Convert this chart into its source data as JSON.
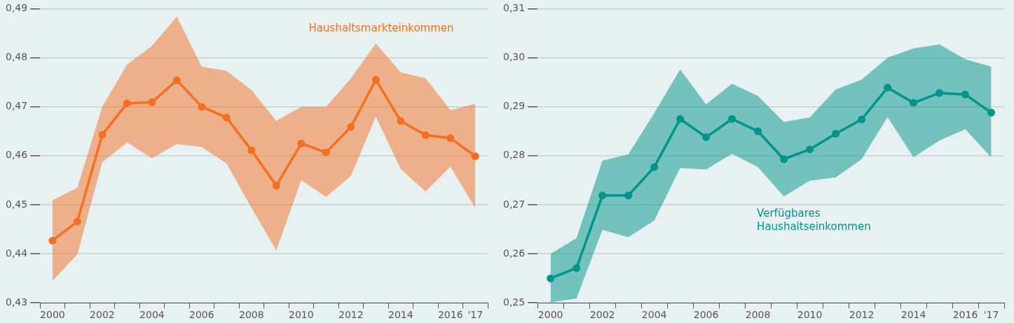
{
  "chart_data": [
    {
      "type": "line",
      "categories": [
        "2000",
        null,
        "2002",
        null,
        "2004",
        null,
        "2006",
        null,
        "2008",
        null,
        "2010",
        null,
        "2012",
        null,
        "2014",
        null,
        "2016",
        "'17"
      ],
      "series": [
        {
          "name": "Haushaltsmarkteinkommen",
          "color": "#f37021",
          "values": [
            0.4427,
            0.4466,
            0.4643,
            0.4707,
            0.4709,
            0.4754,
            0.47,
            0.4678,
            0.4611,
            0.4539,
            0.4625,
            0.4607,
            0.4659,
            0.4755,
            0.4671,
            0.4642,
            0.4636,
            0.4599
          ],
          "lower": [
            0.4345,
            0.4399,
            0.4587,
            0.4627,
            0.4595,
            0.4624,
            0.4618,
            0.4584,
            0.4494,
            0.4407,
            0.455,
            0.4516,
            0.4559,
            0.468,
            0.4573,
            0.4527,
            0.4578,
            0.4493
          ],
          "upper": [
            0.4509,
            0.4535,
            0.47,
            0.4786,
            0.4824,
            0.4884,
            0.4782,
            0.4773,
            0.4734,
            0.4671,
            0.47,
            0.47,
            0.4758,
            0.4829,
            0.477,
            0.4758,
            0.4693,
            0.4706
          ]
        }
      ],
      "ylim": [
        0.43,
        0.49
      ],
      "yticks": [
        {
          "value": 0.43,
          "label": "0,43"
        },
        {
          "value": 0.44,
          "label": "0,44"
        },
        {
          "value": 0.45,
          "label": "0,45"
        },
        {
          "value": 0.46,
          "label": "0,46"
        },
        {
          "value": 0.47,
          "label": "0,47"
        },
        {
          "value": 0.48,
          "label": "0,48"
        },
        {
          "value": 0.49,
          "label": "0,49"
        }
      ],
      "grid": "y",
      "marker": "circle",
      "legend": false
    },
    {
      "type": "line",
      "categories": [
        "2000",
        null,
        "2002",
        null,
        "2004",
        null,
        "2006",
        null,
        "2008",
        null,
        "2010",
        null,
        "2012",
        null,
        "2014",
        null,
        "2016",
        "'17"
      ],
      "series": [
        {
          "name": "Verfügbares Haushaltseinkommen",
          "color": "#00948a",
          "values": [
            0.255,
            0.2571,
            0.2719,
            0.2719,
            0.2777,
            0.2875,
            0.2838,
            0.2875,
            0.285,
            0.2793,
            0.2813,
            0.2845,
            0.2874,
            0.2939,
            0.2908,
            0.2928,
            0.2925,
            0.2888
          ],
          "lower": [
            0.2501,
            0.2509,
            0.2649,
            0.2634,
            0.2668,
            0.2775,
            0.2772,
            0.2804,
            0.2777,
            0.2717,
            0.2749,
            0.2756,
            0.2793,
            0.2879,
            0.2797,
            0.2831,
            0.2854,
            0.2797
          ],
          "upper": [
            0.26,
            0.2632,
            0.279,
            0.2803,
            0.2887,
            0.2976,
            0.2905,
            0.2947,
            0.2922,
            0.2869,
            0.2878,
            0.2935,
            0.2955,
            0.3,
            0.3019,
            0.3027,
            0.2997,
            0.2982
          ]
        }
      ],
      "ylim": [
        0.25,
        0.31
      ],
      "yticks": [
        {
          "value": 0.25,
          "label": "0,25"
        },
        {
          "value": 0.26,
          "label": "0,26"
        },
        {
          "value": 0.27,
          "label": "0,27"
        },
        {
          "value": 0.28,
          "label": "0,28"
        },
        {
          "value": 0.29,
          "label": "0,29"
        },
        {
          "value": 0.3,
          "label": "0,30"
        },
        {
          "value": 0.31,
          "label": "0,31"
        }
      ],
      "grid": "y",
      "marker": "circle",
      "legend": false
    }
  ]
}
